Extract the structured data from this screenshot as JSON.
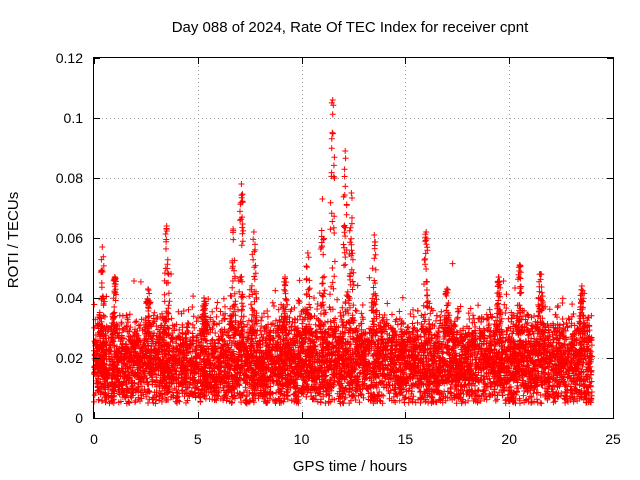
{
  "chart_data": {
    "type": "scatter",
    "title": "Day 088 of 2024, Rate Of TEC Index for receiver cpnt",
    "xlabel": "GPS time / hours",
    "ylabel": "ROTI / TECUs",
    "xlim": [
      0,
      25
    ],
    "ylim": [
      0,
      0.12
    ],
    "xticks": [
      0,
      5,
      10,
      15,
      20,
      25
    ],
    "xtick_labels": [
      "0",
      "5",
      "10",
      "15",
      "20",
      "25"
    ],
    "yticks": [
      0,
      0.02,
      0.04,
      0.06,
      0.08,
      0.1,
      0.12
    ],
    "ytick_labels": [
      "0",
      "0.02",
      "0.04",
      "0.06",
      "0.08",
      "0.1",
      "0.12"
    ],
    "grid": true,
    "marker": "+",
    "series": [
      {
        "name": "ROTI",
        "color": "#ff0000",
        "data_span_hours": [
          0,
          24
        ],
        "baseline_roti": 0.018,
        "typical_band": [
          0.006,
          0.032
        ],
        "peaks": [
          {
            "x": 0.4,
            "y": 0.057
          },
          {
            "x": 1.0,
            "y": 0.047
          },
          {
            "x": 2.6,
            "y": 0.043
          },
          {
            "x": 3.5,
            "y": 0.064
          },
          {
            "x": 5.3,
            "y": 0.04
          },
          {
            "x": 6.7,
            "y": 0.063
          },
          {
            "x": 7.1,
            "y": 0.078
          },
          {
            "x": 7.7,
            "y": 0.062
          },
          {
            "x": 9.2,
            "y": 0.047
          },
          {
            "x": 10.3,
            "y": 0.055
          },
          {
            "x": 11.0,
            "y": 0.073
          },
          {
            "x": 11.5,
            "y": 0.106
          },
          {
            "x": 12.1,
            "y": 0.089
          },
          {
            "x": 12.4,
            "y": 0.075
          },
          {
            "x": 13.5,
            "y": 0.061
          },
          {
            "x": 16.0,
            "y": 0.062
          },
          {
            "x": 17.0,
            "y": 0.043
          },
          {
            "x": 19.5,
            "y": 0.047
          },
          {
            "x": 20.5,
            "y": 0.051
          },
          {
            "x": 21.5,
            "y": 0.048
          },
          {
            "x": 23.5,
            "y": 0.044
          }
        ]
      }
    ]
  }
}
